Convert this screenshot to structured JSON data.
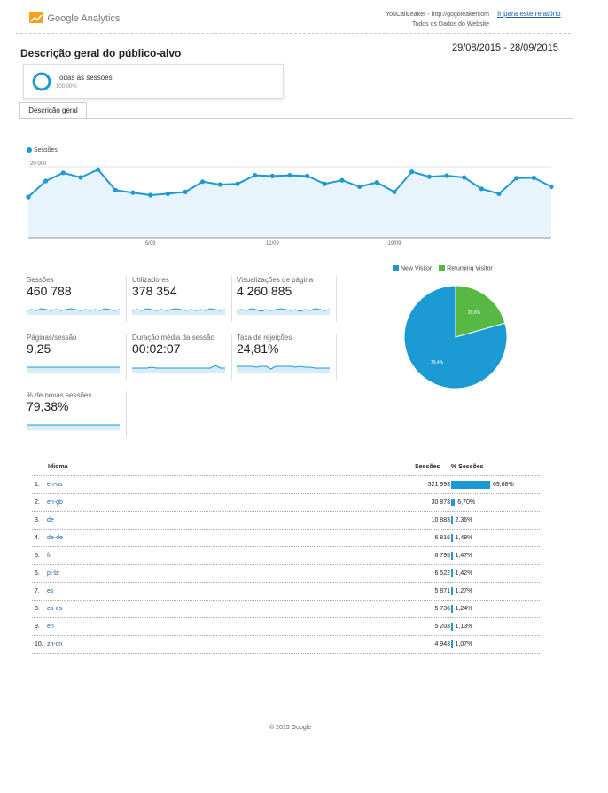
{
  "colors": {
    "accent": "#1b9ad4",
    "returning": "#57b944",
    "grid": "#e6e6e6",
    "link": "#1a5fa8"
  },
  "header": {
    "logo_text": "Google Analytics",
    "account_line1": "YouCallLeaker - http://gogoleakercom",
    "account_line2": "Todos os Dados do Website",
    "goto_report": "Ir para este relatório"
  },
  "page": {
    "title": "Descrição geral do público-alvo",
    "date_range": "29/08/2015 - 28/09/2015"
  },
  "segment": {
    "label": "Todas as sessões",
    "percent": "100,00%"
  },
  "tab": {
    "label": "Descrição geral"
  },
  "chart_data": {
    "type": "line",
    "series": [
      {
        "name": "Sessões",
        "values": [
          11500,
          16000,
          18300,
          17000,
          19200,
          13400,
          12700,
          12000,
          12400,
          12900,
          15800,
          15000,
          15200,
          17600,
          17400,
          17600,
          17400,
          15200,
          16200,
          14400,
          15600,
          12900,
          18600,
          17200,
          17500,
          17000,
          13800,
          12400,
          16800,
          16900,
          14400
        ]
      }
    ],
    "x_ticks": [
      "5/09",
      "12/09",
      "19/09"
    ],
    "y_ticks": [
      "20 000",
      "10 000"
    ],
    "ylim": [
      0,
      23000
    ]
  },
  "metrics": [
    {
      "label": "Sessões",
      "value": "460 788",
      "spark": [
        5,
        6,
        5,
        7,
        6,
        5,
        6,
        5,
        6,
        7,
        6,
        5,
        6,
        5,
        6,
        5,
        7,
        6,
        5,
        6
      ]
    },
    {
      "label": "Utilizadores",
      "value": "378 354",
      "spark": [
        5,
        6,
        5,
        7,
        6,
        5,
        6,
        5,
        6,
        7,
        6,
        5,
        6,
        5,
        6,
        5,
        7,
        6,
        5,
        6
      ]
    },
    {
      "label": "Visualizações de página",
      "value": "4 260 885",
      "spark": [
        5,
        6,
        5,
        7,
        6,
        4,
        6,
        5,
        6,
        7,
        6,
        5,
        6,
        4,
        6,
        5,
        7,
        6,
        5,
        6
      ]
    },
    {
      "label": "Páginas/sessão",
      "value": "9,25",
      "spark": [
        6,
        6,
        6,
        6,
        6,
        6,
        6,
        6,
        6,
        6,
        6,
        6,
        6,
        6,
        6,
        6,
        6,
        6,
        6,
        6
      ]
    },
    {
      "label": "Duração média da sessão",
      "value": "00:02:07",
      "spark": [
        5,
        5,
        5,
        5,
        6,
        5,
        5,
        5,
        5,
        5,
        5,
        5,
        5,
        5,
        5,
        5,
        5,
        8,
        5,
        5
      ]
    },
    {
      "label": "Taxa de rejeições",
      "value": "24,81%",
      "spark": [
        7,
        7,
        7,
        7,
        6,
        7,
        7,
        4,
        7,
        7,
        7,
        7,
        6,
        7,
        6,
        6,
        5,
        5,
        5,
        5
      ]
    },
    {
      "label": "% de novas sessões",
      "value": "79,38%",
      "spark": [
        6,
        6,
        6,
        6,
        6,
        6,
        6,
        6,
        6,
        6,
        6,
        6,
        6,
        6,
        6,
        6,
        6,
        6,
        6,
        6
      ]
    }
  ],
  "pie": {
    "legend": [
      "New Visitor",
      "Returning Visitor"
    ],
    "values": [
      79.4,
      20.6
    ],
    "labels": [
      "79,4%",
      "20,6%"
    ]
  },
  "table": {
    "headers": {
      "lang": "Idioma",
      "sessions": "Sessões",
      "pct": "% Sessões"
    },
    "rows": [
      {
        "rank": "1.",
        "lang": "en-us",
        "sessions": "321 993",
        "pct": "69,88%",
        "frac": 0.6988
      },
      {
        "rank": "2.",
        "lang": "en-gb",
        "sessions": "30 873",
        "pct": "6,70%",
        "frac": 0.067
      },
      {
        "rank": "3.",
        "lang": "de",
        "sessions": "10 883",
        "pct": "2,36%",
        "frac": 0.0236
      },
      {
        "rank": "4.",
        "lang": "de-de",
        "sessions": "6 816",
        "pct": "1,48%",
        "frac": 0.0148
      },
      {
        "rank": "5.",
        "lang": "fr",
        "sessions": "6 795",
        "pct": "1,47%",
        "frac": 0.0147
      },
      {
        "rank": "6.",
        "lang": "pt-br",
        "sessions": "6 522",
        "pct": "1,42%",
        "frac": 0.0142
      },
      {
        "rank": "7.",
        "lang": "es",
        "sessions": "5 871",
        "pct": "1,27%",
        "frac": 0.0127
      },
      {
        "rank": "8.",
        "lang": "es-es",
        "sessions": "5 736",
        "pct": "1,24%",
        "frac": 0.0124
      },
      {
        "rank": "9.",
        "lang": "en",
        "sessions": "5 203",
        "pct": "1,13%",
        "frac": 0.0113
      },
      {
        "rank": "10.",
        "lang": "zh-cn",
        "sessions": "4 943",
        "pct": "1,07%",
        "frac": 0.0107
      }
    ]
  },
  "footer": {
    "text": "© 2015 Google"
  }
}
